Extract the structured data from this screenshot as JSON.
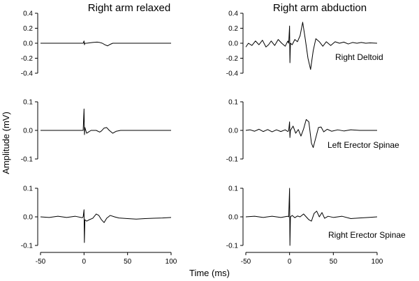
{
  "chart_data": {
    "type": "line",
    "column_titles": [
      "Right arm relaxed",
      "Right arm abduction"
    ],
    "xlabel": "Time (ms)",
    "ylabel": "Amplitude (mV)",
    "xlim": [
      -50,
      100
    ],
    "xticks": [
      -50,
      0,
      50,
      100
    ],
    "rows": [
      {
        "muscle": "Right Deltoid",
        "ylim": [
          -0.4,
          0.4
        ],
        "yticks": [
          -0.4,
          -0.2,
          0.0,
          0.2,
          0.4
        ],
        "ytick_labels": [
          "-0.4",
          "-0.2",
          "0.0",
          "0.2",
          "0.4"
        ],
        "relaxed": {
          "x": [
            -50,
            -1,
            0,
            0.5,
            1,
            3,
            10,
            15,
            18,
            21,
            24,
            27,
            30,
            33,
            40,
            100
          ],
          "y": [
            0,
            0,
            0.03,
            -0.02,
            0,
            0,
            0.01,
            0.015,
            0.01,
            0,
            -0.02,
            -0.035,
            -0.015,
            0,
            0,
            0
          ]
        },
        "abduction": {
          "x": [
            -50,
            -47,
            -43,
            -39,
            -35,
            -31,
            -27,
            -24,
            -21,
            -17,
            -13,
            -9,
            -5,
            -2,
            -1,
            0,
            0.4,
            1,
            3,
            6,
            9,
            12,
            15,
            18,
            21,
            24,
            27,
            30,
            34,
            38,
            42,
            47,
            52,
            57,
            62,
            67,
            72,
            77,
            82,
            87,
            92,
            100
          ],
          "y": [
            -0.05,
            0,
            -0.03,
            0.03,
            -0.02,
            0.04,
            -0.05,
            -0.02,
            0.03,
            -0.03,
            0.05,
            0,
            -0.04,
            0.03,
            0,
            0.23,
            -0.26,
            0,
            -0.02,
            0.05,
            0.02,
            0.1,
            0.28,
            0.05,
            -0.2,
            -0.35,
            -0.1,
            0.06,
            0.02,
            -0.04,
            0.02,
            -0.03,
            0.02,
            0,
            0.015,
            -0.01,
            0.01,
            0,
            0.01,
            0,
            0.005,
            0
          ]
        }
      },
      {
        "muscle": "Left Erector Spinae",
        "ylim": [
          -0.1,
          0.1
        ],
        "yticks": [
          -0.1,
          0.0,
          0.1
        ],
        "ytick_labels": [
          "-0.1",
          "0.0",
          "0.1"
        ],
        "relaxed": {
          "x": [
            -50,
            -1,
            0,
            0.5,
            1,
            3,
            8,
            14,
            18,
            20,
            23,
            26,
            29,
            33,
            37,
            42,
            100
          ],
          "y": [
            0,
            0,
            0.075,
            -0.015,
            0.01,
            -0.01,
            0,
            0,
            -0.006,
            -0.002,
            0.008,
            0.01,
            0,
            -0.01,
            -0.003,
            0,
            0
          ]
        },
        "abduction": {
          "x": [
            -50,
            -45,
            -40,
            -35,
            -30,
            -25,
            -20,
            -15,
            -10,
            -5,
            -2,
            -1,
            0,
            0.4,
            1,
            4,
            7,
            10,
            13,
            16,
            19,
            22,
            25,
            27,
            30,
            33,
            36,
            39,
            43,
            48,
            55,
            62,
            70,
            80,
            100
          ],
          "y": [
            0,
            0.002,
            -0.003,
            0.004,
            -0.004,
            0.003,
            -0.005,
            0.002,
            -0.004,
            0.002,
            -0.004,
            0,
            0.03,
            -0.025,
            0,
            0.015,
            -0.01,
            0.003,
            -0.02,
            0.005,
            0.038,
            0.03,
            -0.045,
            -0.06,
            -0.025,
            0.01,
            0.012,
            -0.005,
            0.004,
            -0.003,
            0.002,
            -0.002,
            0.002,
            0,
            0
          ]
        }
      },
      {
        "muscle": "Right Erector Spinae",
        "ylim": [
          -0.1,
          0.1
        ],
        "yticks": [
          -0.1,
          0.0,
          0.1
        ],
        "ytick_labels": [
          "-0.1",
          "0.0",
          "0.1"
        ],
        "relaxed": {
          "x": [
            -50,
            -40,
            -30,
            -20,
            -10,
            -2,
            -1,
            0,
            0.4,
            1,
            3,
            6,
            10,
            14,
            17,
            20,
            23,
            26,
            30,
            35,
            40,
            50,
            60,
            70,
            80,
            90,
            100
          ],
          "y": [
            0,
            -0.002,
            0.002,
            -0.002,
            0.002,
            -0.003,
            0,
            0.025,
            -0.09,
            -0.01,
            -0.015,
            -0.01,
            -0.005,
            0.01,
            0.005,
            -0.01,
            -0.02,
            -0.005,
            0.005,
            0,
            -0.004,
            -0.006,
            -0.008,
            -0.006,
            -0.005,
            -0.004,
            -0.002
          ]
        },
        "abduction": {
          "x": [
            -50,
            -40,
            -30,
            -20,
            -10,
            -2,
            -1,
            0,
            0.4,
            1,
            3,
            6,
            9,
            12,
            16,
            19,
            22,
            25,
            28,
            31,
            34,
            37,
            40,
            44,
            50,
            60,
            70,
            80,
            90,
            100
          ],
          "y": [
            0,
            0.002,
            -0.002,
            0.002,
            -0.002,
            0.002,
            0,
            0.1,
            -0.1,
            0,
            0.005,
            -0.003,
            0.003,
            0,
            0.01,
            0,
            -0.01,
            -0.015,
            0.012,
            0.02,
            0,
            0.015,
            -0.005,
            0.002,
            -0.002,
            0.002,
            -0.006,
            -0.004,
            -0.002,
            0
          ]
        }
      }
    ]
  }
}
